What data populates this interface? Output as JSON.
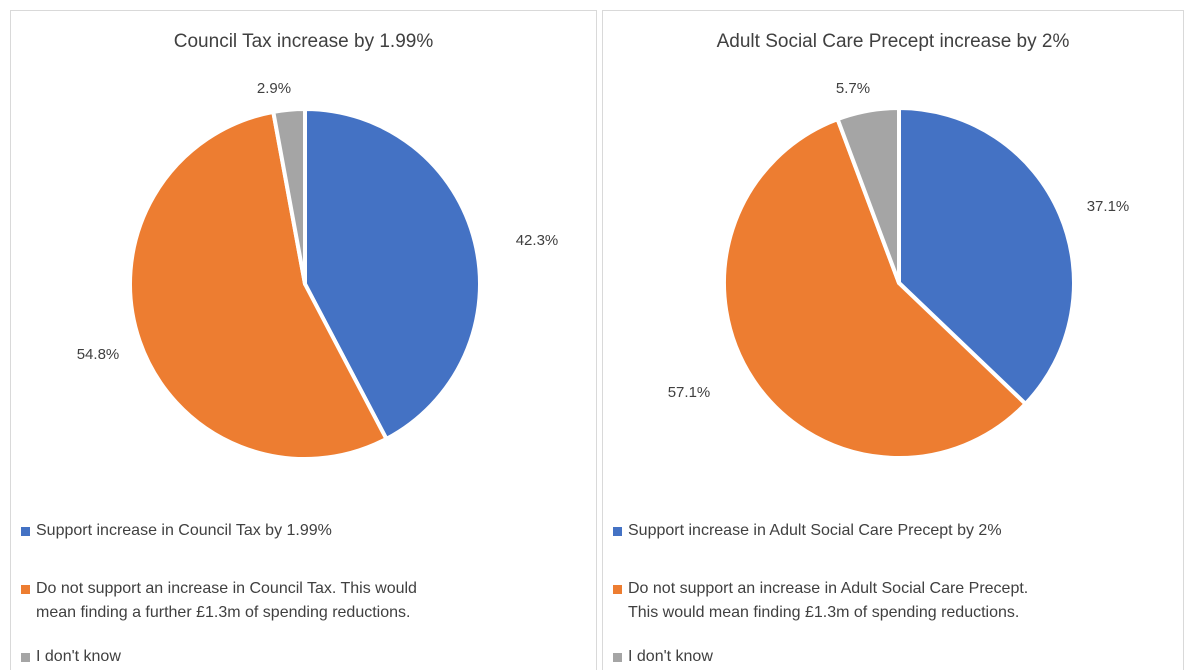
{
  "chart_data": [
    {
      "type": "pie",
      "title": "Council Tax increase by 1.99%",
      "slices": [
        {
          "label": "Support increase in Council Tax by 1.99%",
          "value": 42.3,
          "display": "42.3%",
          "color": "#4472C4"
        },
        {
          "label": "Do not support an increase in Council Tax. This would mean finding a further £1.3m of spending reductions.",
          "value": 54.8,
          "display": "54.8%",
          "color": "#ED7D31"
        },
        {
          "label": "I don't know",
          "value": 2.9,
          "display": "2.9%",
          "color": "#A5A5A5"
        }
      ],
      "legend_placement": "bottom",
      "legend": [
        {
          "lines": [
            "Support increase in Council Tax by 1.99%"
          ]
        },
        {
          "lines": [
            "Do not support an increase in Council Tax. This would",
            "mean finding a further £1.3m of spending reductions."
          ]
        },
        {
          "lines": [
            "I don't know"
          ]
        }
      ]
    },
    {
      "type": "pie",
      "title": "Adult Social Care Precept increase by 2%",
      "slices": [
        {
          "label": "Support increase in Adult Social Care Precept by 2%",
          "value": 37.1,
          "display": "37.1%",
          "color": "#4472C4"
        },
        {
          "label": "Do not support an increase in Adult Social Care Precept. This would mean finding £1.3m of spending reductions.",
          "value": 57.1,
          "display": "57.1%",
          "color": "#ED7D31"
        },
        {
          "label": "I don't know",
          "value": 5.7,
          "display": "5.7%",
          "color": "#A5A5A5"
        }
      ],
      "legend_placement": "bottom",
      "legend": [
        {
          "lines": [
            "Support increase in Adult Social Care Precept by 2%"
          ]
        },
        {
          "lines": [
            "Do not support an increase in Adult Social Care Precept.",
            "This would mean finding £1.3m of spending reductions."
          ]
        },
        {
          "lines": [
            "I don't know"
          ]
        }
      ]
    }
  ]
}
